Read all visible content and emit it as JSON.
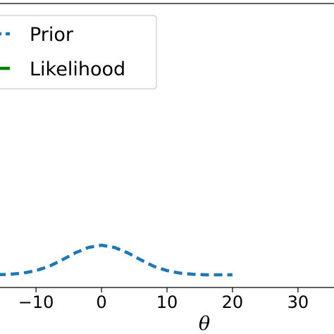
{
  "chart_data": {
    "type": "line",
    "xlabel": "θ",
    "ylabel": "",
    "xlim": [
      -15.5,
      35.5
    ],
    "ylim": [
      0,
      1
    ],
    "grid": false,
    "legend_position": "top-left",
    "x_ticks": [
      {
        "value": -10,
        "label": "−10"
      },
      {
        "value": 0,
        "label": "0"
      },
      {
        "value": 10,
        "label": "10"
      },
      {
        "value": 20,
        "label": "20"
      },
      {
        "value": 30,
        "label": "30"
      }
    ],
    "series": [
      {
        "name": "Prior",
        "color": "#1f77b4",
        "style": "dashed",
        "x": [
          -20,
          -16,
          -14,
          -12,
          -10,
          -8,
          -6,
          -4,
          -2,
          0,
          2,
          4,
          6,
          8,
          10,
          12,
          14,
          16,
          18,
          20
        ],
        "y": [
          0.0,
          0.0,
          0.002,
          0.006,
          0.015,
          0.03,
          0.053,
          0.078,
          0.097,
          0.105,
          0.097,
          0.078,
          0.053,
          0.03,
          0.015,
          0.006,
          0.002,
          0.0,
          0.0,
          0.0
        ]
      },
      {
        "name": "Likelihood",
        "color": "#008000",
        "style": "solid",
        "x": [],
        "y": []
      }
    ]
  }
}
